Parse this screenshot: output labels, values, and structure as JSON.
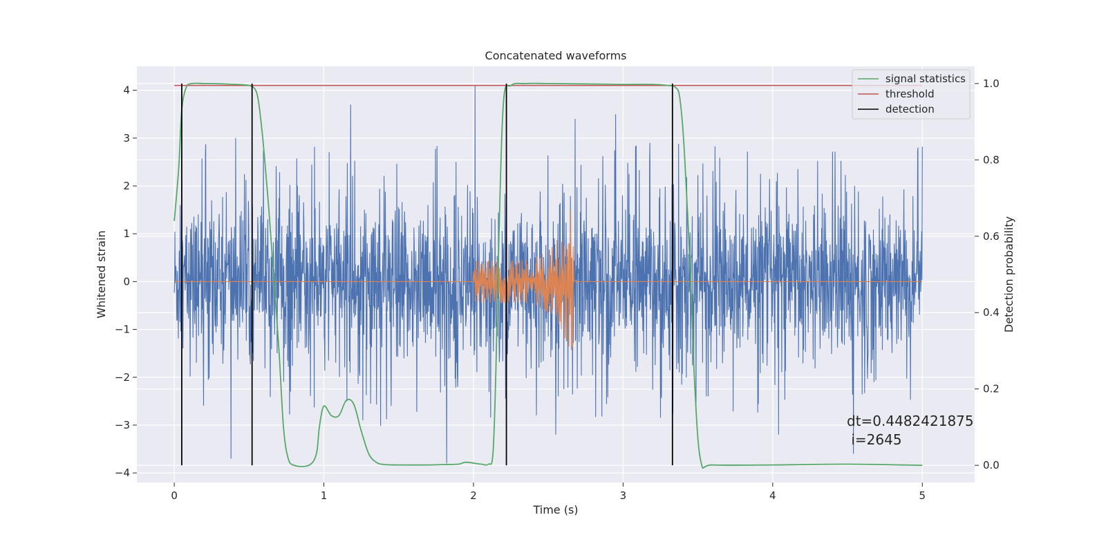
{
  "chart_data": {
    "type": "line",
    "title": "Concatenated waveforms",
    "xlabel": "Time (s)",
    "ylabel": "Whitened strain",
    "ylabel_right": "Detection probability",
    "xlim": [
      -0.25,
      5.35
    ],
    "ylim": [
      -4.2,
      4.5
    ],
    "ylim_right": [
      -0.045,
      1.045
    ],
    "xticks": [
      0,
      1,
      2,
      3,
      4,
      5
    ],
    "xtick_labels": [
      "0",
      "1",
      "2",
      "3",
      "4",
      "5"
    ],
    "yticks": [
      -4,
      -3,
      -2,
      -1,
      0,
      1,
      2,
      3,
      4
    ],
    "ytick_labels": [
      "−4",
      "−3",
      "−2",
      "−1",
      "0",
      "1",
      "2",
      "3",
      "4"
    ],
    "yticks_right": [
      0.0,
      0.2,
      0.4,
      0.6,
      0.8,
      1.0
    ],
    "ytick_labels_right": [
      "0.0",
      "0.2",
      "0.4",
      "0.6",
      "0.8",
      "1.0"
    ],
    "grid": true,
    "legend_position": "upper right",
    "colors": {
      "background": "#eaeaf2",
      "grid": "#ffffff",
      "strain": "#4c72b0",
      "injected": "#dd8452",
      "signal_statistics": "#55a868",
      "threshold": "#c44e52",
      "detection": "#000000"
    },
    "legend": [
      "signal statistics",
      "threshold",
      "detection"
    ],
    "strain": {
      "x_range": [
        0,
        5
      ],
      "envelope": 0.75,
      "spike_peaks": [
        {
          "x": 0.05,
          "y": 2.1
        },
        {
          "x": 0.38,
          "y": -3.7
        },
        {
          "x": 0.41,
          "y": 3.0
        },
        {
          "x": 1.18,
          "y": 3.7
        },
        {
          "x": 1.26,
          "y": -2.9
        },
        {
          "x": 1.82,
          "y": -3.8
        },
        {
          "x": 2.01,
          "y": 4.1
        },
        {
          "x": 2.55,
          "y": -3.2
        },
        {
          "x": 2.68,
          "y": 3.4
        },
        {
          "x": 2.95,
          "y": 3.5
        },
        {
          "x": 4.04,
          "y": -3.2
        },
        {
          "x": 4.54,
          "y": -3.6
        },
        {
          "x": 4.97,
          "y": 2.8
        },
        {
          "x": 3.18,
          "y": 2.9
        }
      ]
    },
    "injected_waveform": {
      "x_range": [
        2.0,
        2.67
      ],
      "start_amplitude": 0.45,
      "peak_amplitude": 1.7,
      "peak_x": 2.67
    },
    "signal_statistics": {
      "x": [
        0.0,
        0.03,
        0.05,
        0.08,
        0.12,
        0.2,
        0.4,
        0.5,
        0.54,
        0.56,
        0.58,
        0.6,
        0.63,
        0.66,
        0.7,
        0.73,
        0.76,
        0.8,
        0.9,
        0.95,
        0.97,
        1.0,
        1.05,
        1.1,
        1.15,
        1.2,
        1.25,
        1.3,
        1.35,
        1.4,
        1.5,
        1.7,
        1.8,
        1.9,
        1.95,
        2.05,
        2.1,
        2.13,
        2.15,
        2.17,
        2.2,
        2.25,
        2.35,
        2.5,
        3.0,
        3.2,
        3.3,
        3.35,
        3.38,
        3.41,
        3.45,
        3.48,
        3.52,
        3.6,
        4.0,
        4.5,
        5.0
      ],
      "y": [
        0.64,
        0.78,
        0.93,
        0.99,
        1.0,
        1.0,
        0.998,
        0.995,
        0.985,
        0.96,
        0.9,
        0.82,
        0.68,
        0.52,
        0.3,
        0.1,
        0.02,
        0.0,
        0.0,
        0.03,
        0.1,
        0.155,
        0.13,
        0.13,
        0.17,
        0.16,
        0.09,
        0.03,
        0.008,
        0.002,
        0.001,
        0.001,
        0.002,
        0.003,
        0.008,
        0.003,
        0.003,
        0.03,
        0.25,
        0.6,
        0.95,
        0.995,
        1.0,
        1.0,
        0.998,
        0.998,
        0.995,
        0.99,
        0.96,
        0.82,
        0.5,
        0.2,
        0.01,
        0.001,
        0.001,
        0.003,
        0.0
      ]
    },
    "threshold": 0.995,
    "detections": [
      0.05,
      0.52,
      2.22,
      3.33
    ],
    "annotation_lines": [
      "dt=0.4482421875",
      " i=2645"
    ]
  }
}
